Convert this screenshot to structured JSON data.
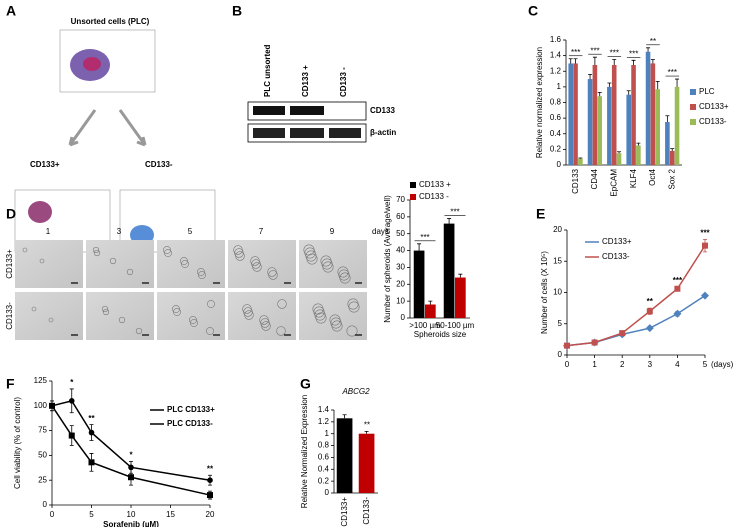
{
  "labels": [
    "A",
    "B",
    "C",
    "D",
    "E",
    "F",
    "G"
  ],
  "panel_a": {
    "title": "Unsorted cells (PLC)",
    "left": "CD133+",
    "right": "CD133-"
  },
  "panel_b": {
    "lanes": [
      "PLC unsorted",
      "CD133 +",
      "CD133 -"
    ],
    "bands": [
      "CD133",
      "β-actin"
    ]
  },
  "panel_d": {
    "days": [
      "1",
      "3",
      "5",
      "7",
      "9"
    ],
    "days_label": "days",
    "rows": [
      "CD133+",
      "CD133-"
    ]
  },
  "chart_data": [
    {
      "type": "bar",
      "ylabel": "Relative normalized expression",
      "categories": [
        "CD133",
        "CD44",
        "EpCAM",
        "KLF4",
        "Oct4",
        "Sox 2"
      ],
      "series": [
        {
          "name": "PLC",
          "color": "#4f81bd",
          "values": [
            1.3,
            1.1,
            1.0,
            0.9,
            1.45,
            0.55
          ],
          "errors": [
            0.06,
            0.06,
            0.05,
            0.05,
            0.05,
            0.08
          ]
        },
        {
          "name": "CD133+",
          "color": "#c0504d",
          "values": [
            1.3,
            1.28,
            1.28,
            1.28,
            1.3,
            0.18
          ],
          "errors": [
            0.06,
            0.1,
            0.07,
            0.06,
            0.05,
            0.03
          ]
        },
        {
          "name": "CD133-",
          "color": "#9bbb59",
          "values": [
            0.08,
            0.88,
            0.15,
            0.25,
            0.97,
            1.0
          ],
          "errors": [
            0.01,
            0.05,
            0.02,
            0.03,
            0.1,
            0.1
          ]
        }
      ],
      "ylim": [
        0,
        1.6
      ],
      "yticks": [
        0,
        0.2,
        0.4,
        0.6,
        0.8,
        1,
        1.2,
        1.4,
        1.6
      ],
      "annotations": [
        {
          "x": 0,
          "text": "***"
        },
        {
          "x": 1,
          "text": "***"
        },
        {
          "x": 2,
          "text": "***"
        },
        {
          "x": 3,
          "text": "***"
        },
        {
          "x": 4,
          "text": "**"
        },
        {
          "x": 5,
          "text": "***"
        }
      ]
    },
    {
      "type": "bar",
      "ylabel": "Number of spheroids (Average/well)",
      "xlabel": "Spheroids size",
      "categories": [
        ">100 µm",
        "50-100 µm"
      ],
      "series": [
        {
          "name": "CD133 +",
          "color": "#000000",
          "values": [
            40,
            56
          ],
          "errors": [
            4,
            3
          ]
        },
        {
          "name": "CD133 -",
          "color": "#c00000",
          "values": [
            8,
            24
          ],
          "errors": [
            2,
            2
          ]
        }
      ],
      "ylim": [
        0,
        70
      ],
      "yticks": [
        0,
        10,
        20,
        30,
        40,
        50,
        60,
        70
      ],
      "annotations": [
        {
          "x": 0,
          "text": "***"
        },
        {
          "x": 1,
          "text": "***"
        }
      ]
    },
    {
      "type": "line",
      "ylabel": "Number of cells (X 10⁵)",
      "xlabel": "(days)",
      "x": [
        0,
        1,
        2,
        3,
        4,
        5
      ],
      "series": [
        {
          "name": "CD133+",
          "color": "#4f81bd",
          "marker": "diamond",
          "values": [
            1.5,
            2,
            3.3,
            4.3,
            6.6,
            9.5
          ],
          "errors": [
            0.1,
            0.1,
            0.2,
            0.2,
            0.4,
            0.2
          ]
        },
        {
          "name": "CD133-",
          "color": "#c0504d",
          "marker": "square",
          "values": [
            1.5,
            2,
            3.5,
            7,
            10.6,
            17.5
          ],
          "errors": [
            0.1,
            0.1,
            0.3,
            0.5,
            0.3,
            1.0
          ]
        }
      ],
      "xlim": [
        0,
        5
      ],
      "xticks": [
        0,
        1,
        2,
        3,
        4,
        5
      ],
      "ylim": [
        0,
        20
      ],
      "yticks": [
        0,
        5,
        10,
        15,
        20
      ],
      "annotations": [
        {
          "x": 3,
          "text": "**"
        },
        {
          "x": 4,
          "text": "***"
        },
        {
          "x": 5,
          "text": "***"
        }
      ]
    },
    {
      "type": "line",
      "ylabel": "Cell viability (% of control)",
      "xlabel": "Sorafenib (µM)",
      "x": [
        0,
        2.5,
        5,
        10,
        20
      ],
      "series": [
        {
          "name": "PLC CD133+",
          "color": "#000000",
          "marker": "circle",
          "values": [
            100,
            105,
            73,
            38,
            25
          ],
          "errors": [
            5,
            12,
            8,
            6,
            5
          ]
        },
        {
          "name": "PLC CD133-",
          "color": "#000000",
          "marker": "square",
          "values": [
            100,
            70,
            43,
            28,
            10
          ],
          "errors": [
            5,
            10,
            9,
            8,
            4
          ]
        }
      ],
      "xlim": [
        0,
        20
      ],
      "xticks": [
        0,
        5,
        10,
        15,
        20
      ],
      "ylim": [
        0,
        125
      ],
      "yticks": [
        0,
        25,
        50,
        75,
        100,
        125
      ],
      "annotations": [
        {
          "x": 2.5,
          "text": "*"
        },
        {
          "x": 5,
          "text": "**"
        },
        {
          "x": 10,
          "text": "*"
        },
        {
          "x": 20,
          "text": "**"
        }
      ]
    },
    {
      "type": "bar",
      "title": "ABCG2",
      "ylabel": "Relative Normalized Expression",
      "categories": [
        "CD133+",
        "CD133-"
      ],
      "values": [
        1.26,
        1.0
      ],
      "errors": [
        0.06,
        0.04
      ],
      "colors": [
        "#000000",
        "#c00000"
      ],
      "ylim": [
        0,
        1.4
      ],
      "yticks": [
        0,
        0.2,
        0.4,
        0.6,
        0.8,
        1,
        1.2,
        1.4
      ],
      "annotations": [
        {
          "x": 1,
          "text": "**"
        }
      ]
    }
  ]
}
